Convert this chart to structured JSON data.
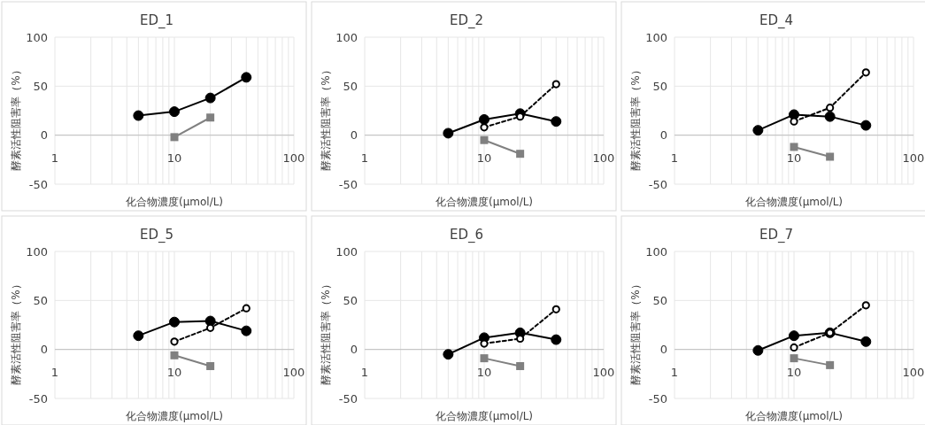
{
  "chart_data": [
    {
      "type": "line",
      "title": "ED_1",
      "xlabel": "化合物濃度(μmol/L)",
      "ylabel": "酵素活性阻害率（%）",
      "log": "x",
      "xlim": [
        1,
        100
      ],
      "xticks": [
        1,
        {
          "value": 2,
          "label": null
        },
        {
          "value": 3,
          "label": null
        },
        {
          "value": 4,
          "label": null
        },
        {
          "value": 5,
          "label": null
        },
        {
          "value": 6,
          "label": null
        },
        {
          "value": 7,
          "label": null
        },
        {
          "value": 8,
          "label": null
        },
        {
          "value": 9,
          "label": null
        },
        10,
        {
          "value": 20,
          "label": null
        },
        {
          "value": 30,
          "label": null
        },
        {
          "value": 40,
          "label": null
        },
        {
          "value": 50,
          "label": null
        },
        {
          "value": 60,
          "label": null
        },
        {
          "value": 70,
          "label": null
        },
        {
          "value": 80,
          "label": null
        },
        {
          "value": 90,
          "label": null
        },
        100
      ],
      "ylim": [
        -50,
        100
      ],
      "yticks": [
        -50,
        0,
        50,
        100
      ],
      "grid": true,
      "series": [
        {
          "color": "#000000",
          "marker": "circle",
          "line_style": "solid",
          "x": [
            5,
            10,
            20,
            40
          ],
          "values": [
            20,
            24,
            38,
            59
          ]
        },
        {
          "color": "#808080",
          "marker": "square",
          "line_style": "solid",
          "x": [
            10,
            20
          ],
          "values": [
            -2,
            18
          ]
        }
      ]
    },
    {
      "type": "line",
      "title": "ED_2",
      "xlabel": "化合物濃度(μmol/L)",
      "ylabel": "酵素活性阻害率（%）",
      "log": "x",
      "xlim": [
        1,
        100
      ],
      "xticks": [
        1,
        {
          "value": 2,
          "label": null
        },
        {
          "value": 3,
          "label": null
        },
        {
          "value": 4,
          "label": null
        },
        {
          "value": 5,
          "label": null
        },
        {
          "value": 6,
          "label": null
        },
        {
          "value": 7,
          "label": null
        },
        {
          "value": 8,
          "label": null
        },
        {
          "value": 9,
          "label": null
        },
        10,
        {
          "value": 20,
          "label": null
        },
        {
          "value": 30,
          "label": null
        },
        {
          "value": 40,
          "label": null
        },
        {
          "value": 50,
          "label": null
        },
        {
          "value": 60,
          "label": null
        },
        {
          "value": 70,
          "label": null
        },
        {
          "value": 80,
          "label": null
        },
        {
          "value": 90,
          "label": null
        },
        100
      ],
      "ylim": [
        -50,
        100
      ],
      "yticks": [
        -50,
        0,
        50,
        100
      ],
      "grid": true,
      "series": [
        {
          "color": "#000000",
          "marker": "circle",
          "line_style": "solid",
          "x": [
            5,
            10,
            20,
            40
          ],
          "values": [
            2,
            16,
            22,
            14
          ]
        },
        {
          "color": "#000000",
          "marker": "circle",
          "line_style": "dashed",
          "x": [
            10,
            20,
            40
          ],
          "values": [
            8,
            19,
            52
          ]
        },
        {
          "color": "#808080",
          "marker": "square",
          "line_style": "solid",
          "x": [
            10,
            20
          ],
          "values": [
            -5,
            -19
          ]
        }
      ]
    },
    {
      "type": "line",
      "title": "ED_4",
      "xlabel": "化合物濃度(μmol/L)",
      "ylabel": "酵素活性阻害率（%）",
      "log": "x",
      "xlim": [
        1,
        100
      ],
      "xticks": [
        1,
        {
          "value": 2,
          "label": null
        },
        {
          "value": 3,
          "label": null
        },
        {
          "value": 4,
          "label": null
        },
        {
          "value": 5,
          "label": null
        },
        {
          "value": 6,
          "label": null
        },
        {
          "value": 7,
          "label": null
        },
        {
          "value": 8,
          "label": null
        },
        {
          "value": 9,
          "label": null
        },
        10,
        {
          "value": 20,
          "label": null
        },
        {
          "value": 30,
          "label": null
        },
        {
          "value": 40,
          "label": null
        },
        {
          "value": 50,
          "label": null
        },
        {
          "value": 60,
          "label": null
        },
        {
          "value": 70,
          "label": null
        },
        {
          "value": 80,
          "label": null
        },
        {
          "value": 90,
          "label": null
        },
        100
      ],
      "ylim": [
        -50,
        100
      ],
      "yticks": [
        -50,
        0,
        50,
        100
      ],
      "grid": true,
      "series": [
        {
          "color": "#000000",
          "marker": "circle",
          "line_style": "solid",
          "x": [
            5,
            10,
            20,
            40
          ],
          "values": [
            5,
            21,
            19,
            10
          ]
        },
        {
          "color": "#000000",
          "marker": "circle",
          "line_style": "dashed",
          "x": [
            10,
            20,
            40
          ],
          "values": [
            14,
            28,
            64
          ]
        },
        {
          "color": "#808080",
          "marker": "square",
          "line_style": "solid",
          "x": [
            10,
            20
          ],
          "values": [
            -12,
            -22
          ]
        }
      ]
    },
    {
      "type": "line",
      "title": "ED_5",
      "xlabel": "化合物濃度(μmol/L)",
      "ylabel": "酵素活性阻害率（%）",
      "log": "x",
      "xlim": [
        1,
        100
      ],
      "xticks": [
        1,
        {
          "value": 2,
          "label": null
        },
        {
          "value": 3,
          "label": null
        },
        {
          "value": 4,
          "label": null
        },
        {
          "value": 5,
          "label": null
        },
        {
          "value": 6,
          "label": null
        },
        {
          "value": 7,
          "label": null
        },
        {
          "value": 8,
          "label": null
        },
        {
          "value": 9,
          "label": null
        },
        10,
        {
          "value": 20,
          "label": null
        },
        {
          "value": 30,
          "label": null
        },
        {
          "value": 40,
          "label": null
        },
        {
          "value": 50,
          "label": null
        },
        {
          "value": 60,
          "label": null
        },
        {
          "value": 70,
          "label": null
        },
        {
          "value": 80,
          "label": null
        },
        {
          "value": 90,
          "label": null
        },
        100
      ],
      "ylim": [
        -50,
        100
      ],
      "yticks": [
        -50,
        0,
        50,
        100
      ],
      "grid": true,
      "series": [
        {
          "color": "#000000",
          "marker": "circle",
          "line_style": "solid",
          "x": [
            5,
            10,
            20,
            40
          ],
          "values": [
            14,
            28,
            29,
            19
          ]
        },
        {
          "color": "#000000",
          "marker": "circle",
          "line_style": "dashed",
          "x": [
            10,
            20,
            40
          ],
          "values": [
            8,
            22,
            42
          ]
        },
        {
          "color": "#808080",
          "marker": "square",
          "line_style": "solid",
          "x": [
            10,
            20
          ],
          "values": [
            -6,
            -17
          ]
        }
      ]
    },
    {
      "type": "line",
      "title": "ED_6",
      "xlabel": "化合物濃度(μmol/L)",
      "ylabel": "酵素活性阻害率（%）",
      "log": "x",
      "xlim": [
        1,
        100
      ],
      "xticks": [
        1,
        {
          "value": 2,
          "label": null
        },
        {
          "value": 3,
          "label": null
        },
        {
          "value": 4,
          "label": null
        },
        {
          "value": 5,
          "label": null
        },
        {
          "value": 6,
          "label": null
        },
        {
          "value": 7,
          "label": null
        },
        {
          "value": 8,
          "label": null
        },
        {
          "value": 9,
          "label": null
        },
        10,
        {
          "value": 20,
          "label": null
        },
        {
          "value": 30,
          "label": null
        },
        {
          "value": 40,
          "label": null
        },
        {
          "value": 50,
          "label": null
        },
        {
          "value": 60,
          "label": null
        },
        {
          "value": 70,
          "label": null
        },
        {
          "value": 80,
          "label": null
        },
        {
          "value": 90,
          "label": null
        },
        100
      ],
      "ylim": [
        -50,
        100
      ],
      "yticks": [
        -50,
        0,
        50,
        100
      ],
      "grid": true,
      "series": [
        {
          "color": "#000000",
          "marker": "circle",
          "line_style": "solid",
          "x": [
            5,
            10,
            20,
            40
          ],
          "values": [
            -5,
            12,
            17,
            10
          ]
        },
        {
          "color": "#000000",
          "marker": "circle",
          "line_style": "dashed",
          "x": [
            10,
            20,
            40
          ],
          "values": [
            6,
            11,
            41
          ]
        },
        {
          "color": "#808080",
          "marker": "square",
          "line_style": "solid",
          "x": [
            10,
            20
          ],
          "values": [
            -9,
            -17
          ]
        }
      ]
    },
    {
      "type": "line",
      "title": "ED_7",
      "xlabel": "化合物濃度(μmol/L)",
      "ylabel": "酵素活性阻害率（%）",
      "log": "x",
      "xlim": [
        1,
        100
      ],
      "xticks": [
        1,
        {
          "value": 2,
          "label": null
        },
        {
          "value": 3,
          "label": null
        },
        {
          "value": 4,
          "label": null
        },
        {
          "value": 5,
          "label": null
        },
        {
          "value": 6,
          "label": null
        },
        {
          "value": 7,
          "label": null
        },
        {
          "value": 8,
          "label": null
        },
        {
          "value": 9,
          "label": null
        },
        10,
        {
          "value": 20,
          "label": null
        },
        {
          "value": 30,
          "label": null
        },
        {
          "value": 40,
          "label": null
        },
        {
          "value": 50,
          "label": null
        },
        {
          "value": 60,
          "label": null
        },
        {
          "value": 70,
          "label": null
        },
        {
          "value": 80,
          "label": null
        },
        {
          "value": 90,
          "label": null
        },
        100
      ],
      "ylim": [
        -50,
        100
      ],
      "yticks": [
        -50,
        0,
        50,
        100
      ],
      "grid": true,
      "series": [
        {
          "color": "#000000",
          "marker": "circle",
          "line_style": "solid",
          "x": [
            5,
            10,
            20,
            40
          ],
          "values": [
            -1,
            14,
            17,
            8
          ]
        },
        {
          "color": "#000000",
          "marker": "circle",
          "line_style": "dashed",
          "x": [
            10,
            20,
            40
          ],
          "values": [
            2,
            17,
            45
          ]
        },
        {
          "color": "#808080",
          "marker": "square",
          "line_style": "solid",
          "x": [
            10,
            20
          ],
          "values": [
            -9,
            -16
          ]
        }
      ]
    }
  ]
}
